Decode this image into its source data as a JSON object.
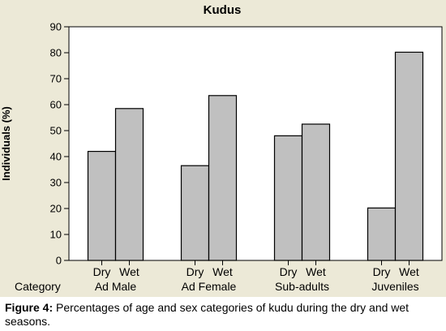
{
  "chart_data": {
    "type": "bar",
    "title": "Kudus",
    "ylabel": "Individuals (%)",
    "xlabel": "Category",
    "ylim": [
      0,
      90
    ],
    "yticks": [
      0,
      10,
      20,
      30,
      40,
      50,
      60,
      70,
      80,
      90
    ],
    "grid": false,
    "categories": [
      "Ad Male",
      "Ad Female",
      "Sub-adults",
      "Juveniles"
    ],
    "series": [
      {
        "name": "Dry",
        "values": [
          42,
          36.5,
          48,
          20.2
        ]
      },
      {
        "name": "Wet",
        "values": [
          58.5,
          63.5,
          52.5,
          80.2
        ]
      }
    ],
    "colors": {
      "bar_fill": "#c0c0c0",
      "bar_stroke": "#000000",
      "panel_bg": "#ece9d7",
      "plot_bg": "#ffffff"
    }
  },
  "caption": {
    "label": "Figure 4:",
    "text": " Percentages of age and sex categories of kudu during the dry and wet seasons."
  }
}
